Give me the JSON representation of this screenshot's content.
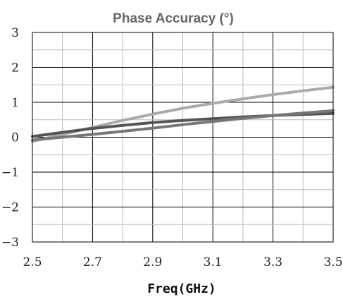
{
  "chart_data": {
    "type": "line",
    "title": "Phase Accuracy (°)",
    "xlabel": "Freq(GHz)",
    "ylabel": "",
    "xlim": [
      2.5,
      3.5
    ],
    "ylim": [
      -3,
      3
    ],
    "x_ticks": [
      "2.5",
      "2.7",
      "2.9",
      "3.1",
      "3.3",
      "3.5"
    ],
    "y_ticks": [
      "3",
      "2",
      "1",
      "0",
      "−1",
      "−2",
      "−3"
    ],
    "grid": true,
    "x": [
      2.5,
      2.6,
      2.7,
      2.8,
      2.9,
      3.0,
      3.1,
      3.2,
      3.3,
      3.4,
      3.5
    ],
    "series": [
      {
        "color": "#aaaaaa",
        "values": [
          -0.12,
          0.08,
          0.28,
          0.48,
          0.66,
          0.83,
          0.97,
          1.1,
          1.22,
          1.33,
          1.43
        ]
      },
      {
        "color": "#555555",
        "values": [
          0.02,
          0.14,
          0.25,
          0.34,
          0.42,
          0.48,
          0.53,
          0.58,
          0.62,
          0.65,
          0.68
        ]
      },
      {
        "color": "#777777",
        "values": [
          -0.08,
          0.0,
          0.08,
          0.17,
          0.26,
          0.36,
          0.45,
          0.54,
          0.62,
          0.69,
          0.76
        ]
      }
    ]
  }
}
